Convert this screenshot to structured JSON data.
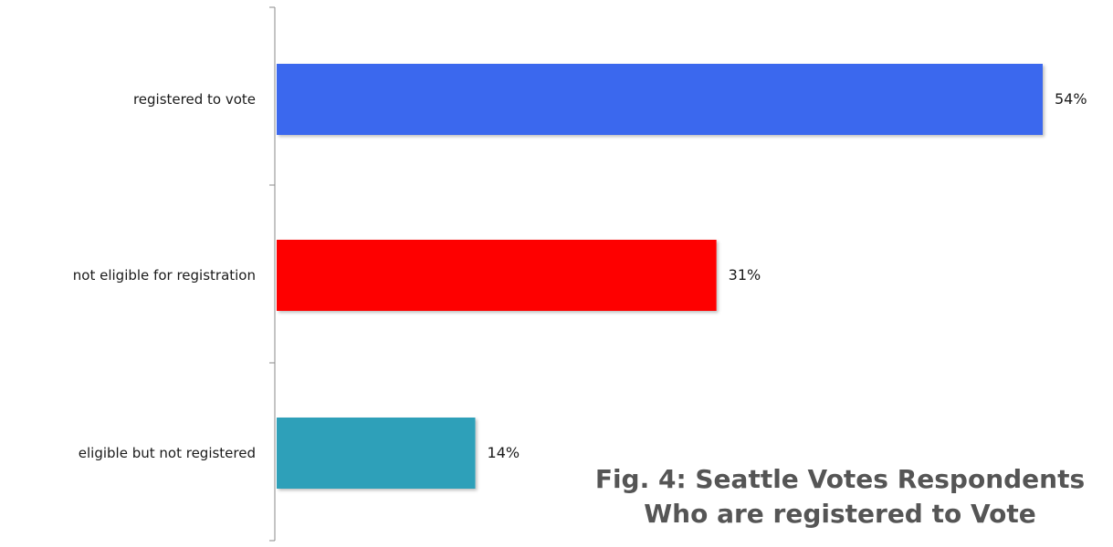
{
  "chart_data": {
    "type": "bar",
    "orientation": "horizontal",
    "categories": [
      "registered to vote",
      "not eligible for registration",
      "eligible but not registered"
    ],
    "values": [
      54,
      31,
      14
    ],
    "data_labels": [
      "54%",
      "31%",
      "14%"
    ],
    "colors": [
      "#3b67ee",
      "#fe0000",
      "#2fa0b9"
    ],
    "xlim": [
      0,
      60
    ],
    "grid": false,
    "legend": "none",
    "title_lines": [
      "Fig. 4: Seattle Votes Respondents",
      "Who are registered to Vote"
    ]
  }
}
